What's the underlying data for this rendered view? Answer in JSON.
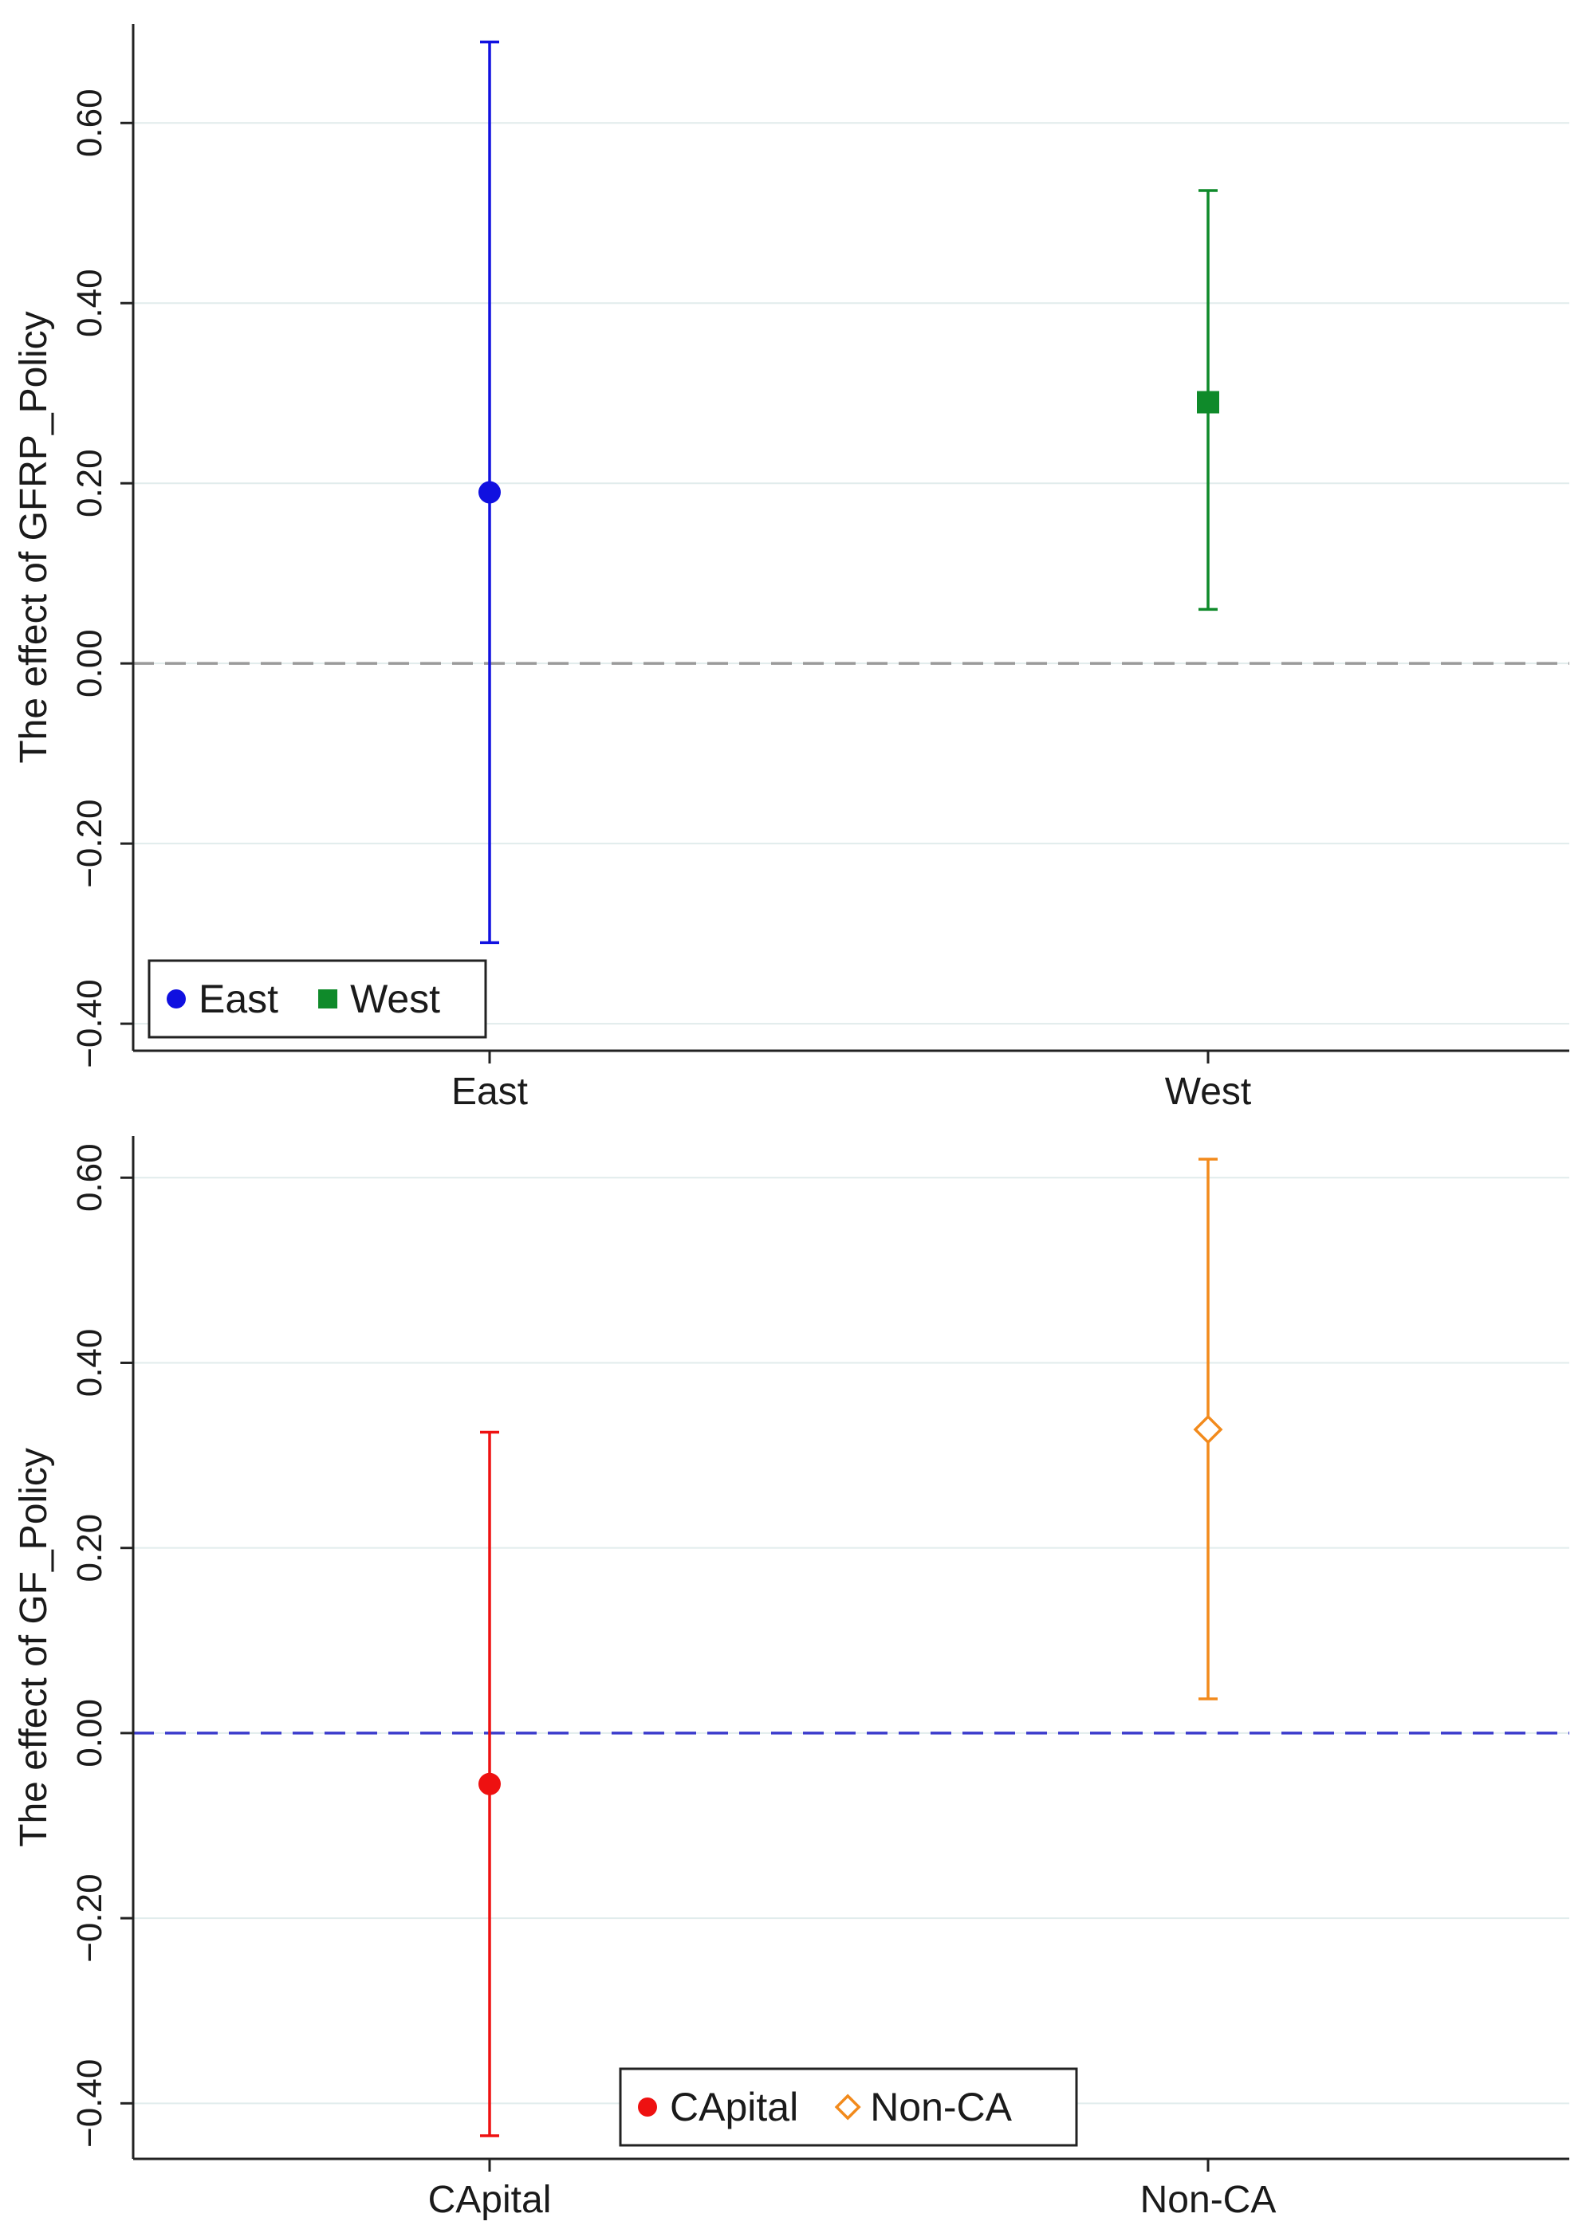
{
  "chart_data": [
    {
      "type": "scatter",
      "subtype": "coefficient-plot-with-confidence-intervals",
      "ylabel": "The effect of GFRP_Policy",
      "xlabel": "",
      "categories": [
        "East",
        "West"
      ],
      "ylim": [
        -0.43,
        0.71
      ],
      "yticks": [
        -0.4,
        -0.2,
        0.0,
        0.2,
        0.4,
        0.6
      ],
      "ytick_labels": [
        "−0.40",
        "−0.20",
        "0.00",
        "0.20",
        "0.40",
        "0.60"
      ],
      "grid": true,
      "reference_line": {
        "y": 0,
        "style": "dashed",
        "color": "#9a9a9a"
      },
      "legend": {
        "position": "bottom-left",
        "entries": [
          "East",
          "West"
        ]
      },
      "series": [
        {
          "name": "East",
          "category": "East",
          "marker": "circle",
          "color": "#1010e0",
          "estimate": 0.19,
          "ci_low": -0.31,
          "ci_high": 0.69
        },
        {
          "name": "West",
          "category": "West",
          "marker": "square",
          "color": "#0f8a2a",
          "estimate": 0.29,
          "ci_low": 0.06,
          "ci_high": 0.525
        }
      ]
    },
    {
      "type": "scatter",
      "subtype": "coefficient-plot-with-confidence-intervals",
      "ylabel": "The effect of GF_Policy",
      "xlabel": "",
      "categories": [
        "CApital",
        "Non-CA"
      ],
      "ylim": [
        -0.46,
        0.645
      ],
      "yticks": [
        -0.4,
        -0.2,
        0.0,
        0.2,
        0.4,
        0.6
      ],
      "ytick_labels": [
        "−0.40",
        "−0.20",
        "0.00",
        "0.20",
        "0.40",
        "0.60"
      ],
      "grid": true,
      "reference_line": {
        "y": 0,
        "style": "dashed",
        "color": "#3c3ccc"
      },
      "legend": {
        "position": "bottom-center",
        "entries": [
          "CApital",
          "Non-CA"
        ]
      },
      "series": [
        {
          "name": "CApital",
          "category": "CApital",
          "marker": "circle",
          "color": "#ee1111",
          "estimate": -0.055,
          "ci_low": -0.435,
          "ci_high": 0.325
        },
        {
          "name": "Non-CA",
          "category": "Non-CA",
          "marker": "hollow-diamond",
          "color": "#f28a1c",
          "estimate": 0.328,
          "ci_low": 0.037,
          "ci_high": 0.62
        }
      ]
    }
  ]
}
